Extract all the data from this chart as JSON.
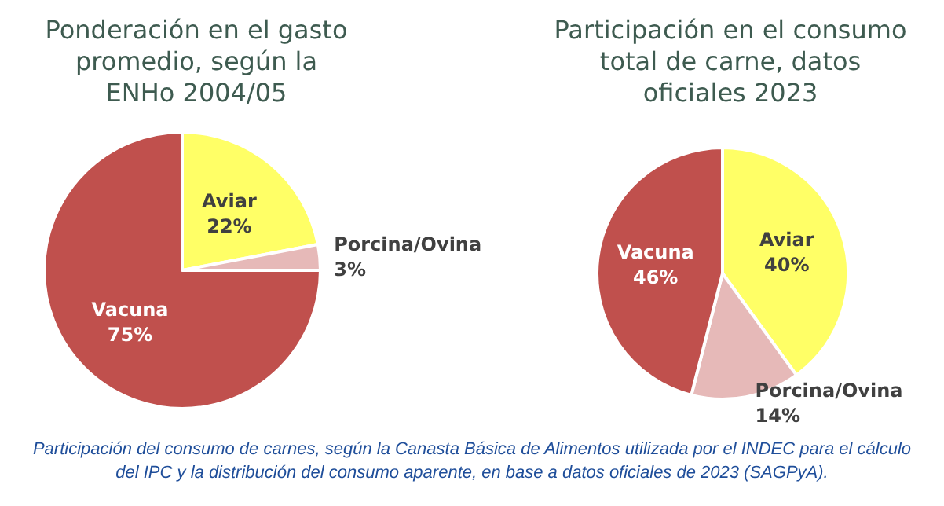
{
  "chart_data": [
    {
      "type": "pie",
      "title": "Ponderación en el gasto\npromedio, según la\nENHo 2004/05",
      "categories": [
        "Aviar",
        "Porcina/Ovina",
        "Vacuna"
      ],
      "values": [
        22,
        3,
        75
      ],
      "value_labels": [
        "22%",
        "3%",
        "75%"
      ],
      "colors": [
        "#ffff66",
        "#e6b9b8",
        "#c0504d"
      ],
      "annotations": [
        "Participación del consumo de carnes, según la Canasta Básica de Alimentos utilizada por el INDEC para el cálculo del IPC y la distribución del consumo aparente, en base a datos oficiales de 2023 (SAGPyA)."
      ]
    },
    {
      "type": "pie",
      "title": "Participación en el consumo\ntotal de carne, datos\noficiales 2023",
      "categories": [
        "Aviar",
        "Porcina/Ovina",
        "Vacuna"
      ],
      "values": [
        40,
        14,
        46
      ],
      "value_labels": [
        "40%",
        "14%",
        "46%"
      ],
      "colors": [
        "#ffff66",
        "#e6b9b8",
        "#c0504d"
      ]
    }
  ]
}
